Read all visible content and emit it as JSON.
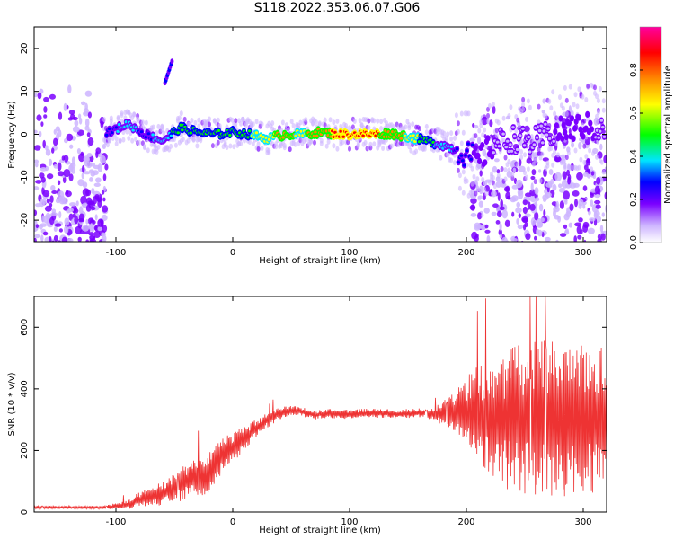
{
  "title": "S118.2022.353.06.07.G06",
  "chart_data": [
    {
      "type": "heatmap",
      "xlabel": "Height of straight line (km)",
      "ylabel": "Frequency (Hz)",
      "xlim": [
        -170,
        320
      ],
      "ylim": [
        -25,
        25
      ],
      "xticks": [
        -100,
        0,
        100,
        200,
        300
      ],
      "yticks": [
        -20,
        -10,
        0,
        10,
        20
      ],
      "colorbar": {
        "label": "Normalized spectral amplitude",
        "range": [
          0.0,
          1.0
        ],
        "ticks": [
          0.0,
          0.2,
          0.4,
          0.6,
          0.8
        ],
        "tick_labels": [
          "0.0",
          "0.2",
          "0.4",
          "0.6",
          "0.8"
        ]
      },
      "colormap": [
        "#ffffff",
        "#cdb4ff",
        "#7a00ff",
        "#0000ff",
        "#00e5ff",
        "#00ff00",
        "#ffff00",
        "#ff8800",
        "#ff0000",
        "#ff00a0"
      ],
      "ridge": {
        "x": [
          -105,
          -90,
          -75,
          -60,
          -45,
          -30,
          -15,
          0,
          15,
          30,
          45,
          60,
          75,
          90,
          105,
          120,
          135,
          150,
          165,
          180,
          195,
          210,
          225,
          240,
          255,
          270,
          285,
          300,
          315
        ],
        "frequency": [
          0.5,
          2.5,
          0,
          -1.5,
          1.5,
          0.5,
          0,
          0.5,
          0,
          -1,
          0,
          0,
          0.5,
          0,
          0,
          0,
          0.2,
          -0.5,
          -1.5,
          -2.5,
          -4,
          -6,
          -2,
          -1,
          -2,
          0,
          1,
          2,
          1
        ],
        "amplitude": [
          0.35,
          0.45,
          0.35,
          0.45,
          0.55,
          0.5,
          0.5,
          0.55,
          0.6,
          0.7,
          0.75,
          0.7,
          0.8,
          0.85,
          0.9,
          0.85,
          0.8,
          0.7,
          0.55,
          0.45,
          0.35,
          0.25,
          0.15,
          0.15,
          0.12,
          0.15,
          0.2,
          0.2,
          0.15
        ]
      },
      "scatter_regions": [
        {
          "x": [
            -170,
            -108
          ],
          "frequency": [
            -25,
            25
          ],
          "amplitude": 0.15
        },
        {
          "x": [
            205,
            320
          ],
          "frequency": [
            -15,
            15
          ],
          "amplitude": 0.12
        }
      ],
      "bright_streak": {
        "x": [
          -58,
          -52
        ],
        "frequency": [
          12,
          17
        ]
      }
    },
    {
      "type": "line",
      "xlabel": "Height of straight line (km)",
      "ylabel": "SNR (10 * v/v)",
      "xlim": [
        -170,
        320
      ],
      "ylim": [
        0,
        700
      ],
      "xticks": [
        -100,
        0,
        100,
        200,
        300
      ],
      "yticks": [
        0,
        200,
        400,
        600
      ],
      "color": "#ee3333",
      "series": [
        {
          "x": [
            -170,
            -110,
            -90,
            -80,
            -70,
            -60,
            -50,
            -40,
            -30,
            -20,
            -10,
            0,
            10,
            20,
            30,
            40,
            50,
            60,
            70,
            80,
            90,
            100,
            110,
            120,
            130,
            140,
            150,
            160,
            170,
            180,
            190,
            200,
            210,
            220,
            230,
            240,
            250,
            260,
            270,
            280,
            290,
            300,
            310,
            320
          ],
          "y": [
            15,
            15,
            25,
            40,
            50,
            60,
            80,
            100,
            120,
            130,
            180,
            210,
            240,
            270,
            300,
            320,
            330,
            325,
            315,
            320,
            320,
            315,
            320,
            322,
            320,
            318,
            320,
            322,
            318,
            320,
            320,
            320,
            310,
            305,
            300,
            300,
            305,
            300,
            305,
            300,
            300,
            300,
            300,
            300
          ],
          "spread": [
            5,
            5,
            15,
            25,
            30,
            40,
            50,
            60,
            70,
            70,
            60,
            50,
            40,
            30,
            25,
            20,
            15,
            15,
            15,
            15,
            20,
            15,
            15,
            15,
            15,
            15,
            15,
            15,
            20,
            40,
            70,
            120,
            170,
            200,
            220,
            240,
            250,
            260,
            250,
            250,
            250,
            250,
            250,
            240
          ]
        }
      ]
    }
  ]
}
